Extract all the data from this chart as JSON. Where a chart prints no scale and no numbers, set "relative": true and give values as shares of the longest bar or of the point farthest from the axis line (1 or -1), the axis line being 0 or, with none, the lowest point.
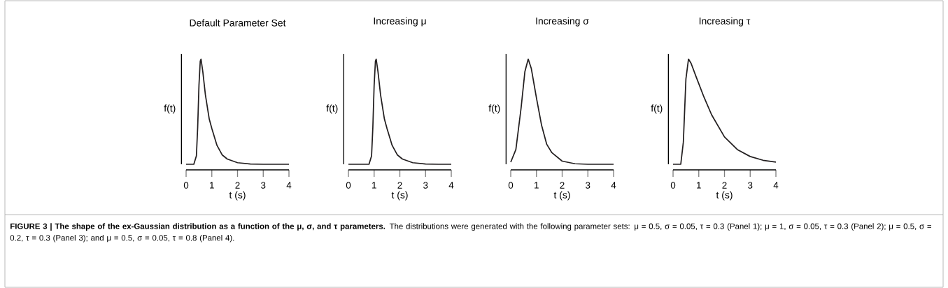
{
  "chart_data": [
    {
      "type": "line",
      "title": "Default Parameter Set",
      "xlabel": "t (s)",
      "ylabel": "f(t)",
      "relative": true,
      "xlim": [
        0,
        4
      ],
      "xticks": [
        0,
        1,
        2,
        3,
        4
      ],
      "color": "#231f20",
      "x": [
        0,
        0.3,
        0.4,
        0.45,
        0.5,
        0.55,
        0.58,
        0.65,
        0.75,
        0.9,
        1.0,
        1.2,
        1.4,
        1.6,
        2.0,
        2.5,
        3,
        4
      ],
      "values": [
        0,
        0,
        0.08,
        0.35,
        0.75,
        0.98,
        1,
        0.88,
        0.66,
        0.43,
        0.34,
        0.18,
        0.09,
        0.05,
        0.015,
        0.003,
        0,
        0
      ],
      "annotations": [
        "**FIGURE 3 | The shape of the ex-Gaussian distribution as a function of the μ, σ, and τ parameters.** The distributions were generated with the following parameter sets: μ = 0.5, σ = 0.05, τ = 0.3 (Panel 1); μ = 1, σ = 0.05, τ = 0.3 (Panel 2); μ = 0.5, σ = 0.2, τ = 0.3 (Panel 3); and μ = 0.5, σ = 0.05, τ = 0.8 (Panel 4)."
      ]
    },
    {
      "type": "line",
      "title": "Increasing μ",
      "xlabel": "t (s)",
      "ylabel": "f(t)",
      "relative": true,
      "xlim": [
        0,
        4
      ],
      "xticks": [
        0,
        1,
        2,
        3,
        4
      ],
      "color": "#231f20",
      "x": [
        0,
        0.8,
        0.9,
        0.95,
        1.0,
        1.05,
        1.08,
        1.15,
        1.25,
        1.4,
        1.5,
        1.7,
        1.9,
        2.1,
        2.5,
        3,
        3.5,
        4
      ],
      "values": [
        0,
        0,
        0.08,
        0.35,
        0.75,
        0.98,
        1,
        0.88,
        0.66,
        0.43,
        0.34,
        0.18,
        0.09,
        0.05,
        0.015,
        0.003,
        0,
        0
      ]
    },
    {
      "type": "line",
      "title": "Increasing σ",
      "xlabel": "t (s)",
      "ylabel": "f(t)",
      "relative": true,
      "xlim": [
        0,
        4
      ],
      "xticks": [
        0,
        1,
        2,
        3,
        4
      ],
      "color": "#231f20",
      "x": [
        0,
        0.2,
        0.4,
        0.55,
        0.68,
        0.8,
        1.0,
        1.2,
        1.4,
        1.6,
        2.0,
        2.5,
        3,
        4
      ],
      "values": [
        0.02,
        0.14,
        0.53,
        0.88,
        1,
        0.91,
        0.63,
        0.37,
        0.19,
        0.11,
        0.03,
        0.005,
        0,
        0
      ]
    },
    {
      "type": "line",
      "title": "Increasing τ",
      "xlabel": "t (s)",
      "ylabel": "f(t)",
      "relative": true,
      "xlim": [
        0,
        4
      ],
      "xticks": [
        0,
        1,
        2,
        3,
        4
      ],
      "color": "#231f20",
      "x": [
        0,
        0.3,
        0.4,
        0.5,
        0.6,
        0.7,
        0.9,
        1.2,
        1.5,
        2.0,
        2.5,
        3,
        3.5,
        4
      ],
      "values": [
        0,
        0,
        0.21,
        0.81,
        1,
        0.96,
        0.83,
        0.64,
        0.47,
        0.26,
        0.14,
        0.074,
        0.038,
        0.021
      ]
    }
  ]
}
